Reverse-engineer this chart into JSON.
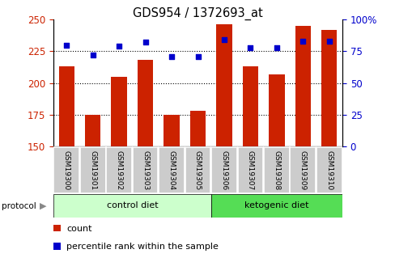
{
  "title": "GDS954 / 1372693_at",
  "samples": [
    "GSM19300",
    "GSM19301",
    "GSM19302",
    "GSM19303",
    "GSM19304",
    "GSM19305",
    "GSM19306",
    "GSM19307",
    "GSM19308",
    "GSM19309",
    "GSM19310"
  ],
  "count_values": [
    213,
    175,
    205,
    218,
    175,
    178,
    246,
    213,
    207,
    245,
    242
  ],
  "percentile_values": [
    80,
    72,
    79,
    82,
    71,
    71,
    84,
    78,
    78,
    83,
    83
  ],
  "count_base": 150,
  "count_ylim": [
    150,
    250
  ],
  "percentile_ylim": [
    0,
    100
  ],
  "yticks_left": [
    150,
    175,
    200,
    225,
    250
  ],
  "yticks_right": [
    0,
    25,
    50,
    75,
    100
  ],
  "bar_color": "#cc2200",
  "dot_color": "#0000cc",
  "control_diet_indices": [
    0,
    1,
    2,
    3,
    4,
    5
  ],
  "ketogenic_diet_indices": [
    6,
    7,
    8,
    9,
    10
  ],
  "control_label": "control diet",
  "ketogenic_label": "ketogenic diet",
  "protocol_label": "protocol",
  "legend_count": "count",
  "legend_percentile": "percentile rank within the sample",
  "bar_width": 0.6,
  "control_bg": "#ccffcc",
  "ketogenic_bg": "#55dd55",
  "tick_label_bg": "#cccccc",
  "fig_bg": "#ffffff"
}
